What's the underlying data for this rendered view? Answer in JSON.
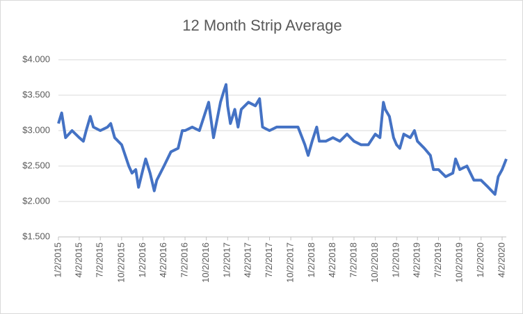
{
  "chart_data": {
    "type": "line",
    "title": "12 Month Strip Average",
    "x": [
      "1/2/2015",
      "1/16/2015",
      "2/2/2015",
      "3/2/2015",
      "4/2/2015",
      "4/20/2015",
      "5/2/2015",
      "5/20/2015",
      "6/2/2015",
      "7/2/2015",
      "8/2/2015",
      "8/16/2015",
      "9/2/2015",
      "10/2/2015",
      "11/2/2015",
      "11/16/2015",
      "12/2/2015",
      "12/14/2015",
      "1/2/2016",
      "1/14/2016",
      "2/2/2016",
      "2/20/2016",
      "3/2/2016",
      "4/2/2016",
      "5/2/2016",
      "6/2/2016",
      "6/20/2016",
      "7/2/2016",
      "8/2/2016",
      "9/2/2016",
      "10/2/2016",
      "10/12/2016",
      "11/2/2016",
      "12/2/2016",
      "12/16/2016",
      "12/26/2016",
      "1/2/2017",
      "1/14/2017",
      "2/2/2017",
      "2/16/2017",
      "3/2/2017",
      "4/2/2017",
      "5/2/2017",
      "5/20/2017",
      "6/2/2017",
      "7/2/2017",
      "8/2/2017",
      "9/2/2017",
      "10/2/2017",
      "11/2/2017",
      "12/2/2017",
      "12/16/2017",
      "1/2/2018",
      "1/22/2018",
      "2/2/2018",
      "3/2/2018",
      "4/2/2018",
      "5/2/2018",
      "6/2/2018",
      "7/2/2018",
      "8/2/2018",
      "9/2/2018",
      "10/2/2018",
      "10/22/2018",
      "11/6/2018",
      "11/14/2018",
      "12/2/2018",
      "12/20/2018",
      "1/2/2019",
      "1/16/2019",
      "2/2/2019",
      "3/2/2019",
      "3/20/2019",
      "4/2/2019",
      "5/2/2019",
      "5/28/2019",
      "6/10/2019",
      "7/2/2019",
      "8/2/2019",
      "9/2/2019",
      "9/14/2019",
      "10/2/2019",
      "11/2/2019",
      "12/2/2019",
      "1/2/2020",
      "2/2/2020",
      "3/2/2020",
      "3/16/2020",
      "4/2/2020",
      "4/20/2020"
    ],
    "series": [
      {
        "color": "#4472c4",
        "values": [
          3.1,
          3.25,
          2.9,
          3.0,
          2.9,
          2.85,
          3.0,
          3.2,
          3.05,
          3.0,
          3.05,
          3.1,
          2.9,
          2.8,
          2.5,
          2.4,
          2.45,
          2.2,
          2.45,
          2.6,
          2.4,
          2.15,
          2.3,
          2.5,
          2.7,
          2.75,
          3.0,
          3.0,
          3.05,
          3.0,
          3.3,
          3.4,
          2.9,
          3.4,
          3.55,
          3.65,
          3.35,
          3.1,
          3.3,
          3.05,
          3.3,
          3.4,
          3.35,
          3.45,
          3.05,
          3.0,
          3.05,
          3.05,
          3.05,
          3.05,
          2.8,
          2.65,
          2.85,
          3.05,
          2.85,
          2.85,
          2.9,
          2.85,
          2.95,
          2.85,
          2.8,
          2.8,
          2.95,
          2.9,
          3.4,
          3.3,
          3.2,
          2.9,
          2.8,
          2.75,
          2.95,
          2.9,
          3.0,
          2.85,
          2.75,
          2.65,
          2.45,
          2.45,
          2.35,
          2.4,
          2.6,
          2.45,
          2.5,
          2.3,
          2.3,
          2.2,
          2.1,
          2.35,
          2.45,
          2.6
        ]
      }
    ],
    "xlim": [
      "1/2/2015",
      "4/20/2020"
    ],
    "xticks": [
      "1/2/2015",
      "4/2/2015",
      "7/2/2015",
      "10/2/2015",
      "1/2/2016",
      "4/2/2016",
      "7/2/2016",
      "10/2/2016",
      "1/2/2017",
      "4/2/2017",
      "7/2/2017",
      "10/2/2017",
      "1/2/2018",
      "4/2/2018",
      "7/2/2018",
      "10/2/2018",
      "1/2/2019",
      "4/2/2019",
      "7/2/2019",
      "10/2/2019",
      "1/2/2020",
      "4/2/2020"
    ],
    "ylim": [
      1.5,
      4.0
    ],
    "yticks": [
      {
        "value": 1.5,
        "label": "$1.500"
      },
      {
        "value": 2.0,
        "label": "$2.000"
      },
      {
        "value": 2.5,
        "label": "$2.500"
      },
      {
        "value": 3.0,
        "label": "$3.000"
      },
      {
        "value": 3.5,
        "label": "$3.500"
      },
      {
        "value": 4.0,
        "label": "$4.000"
      }
    ],
    "grid": true
  }
}
